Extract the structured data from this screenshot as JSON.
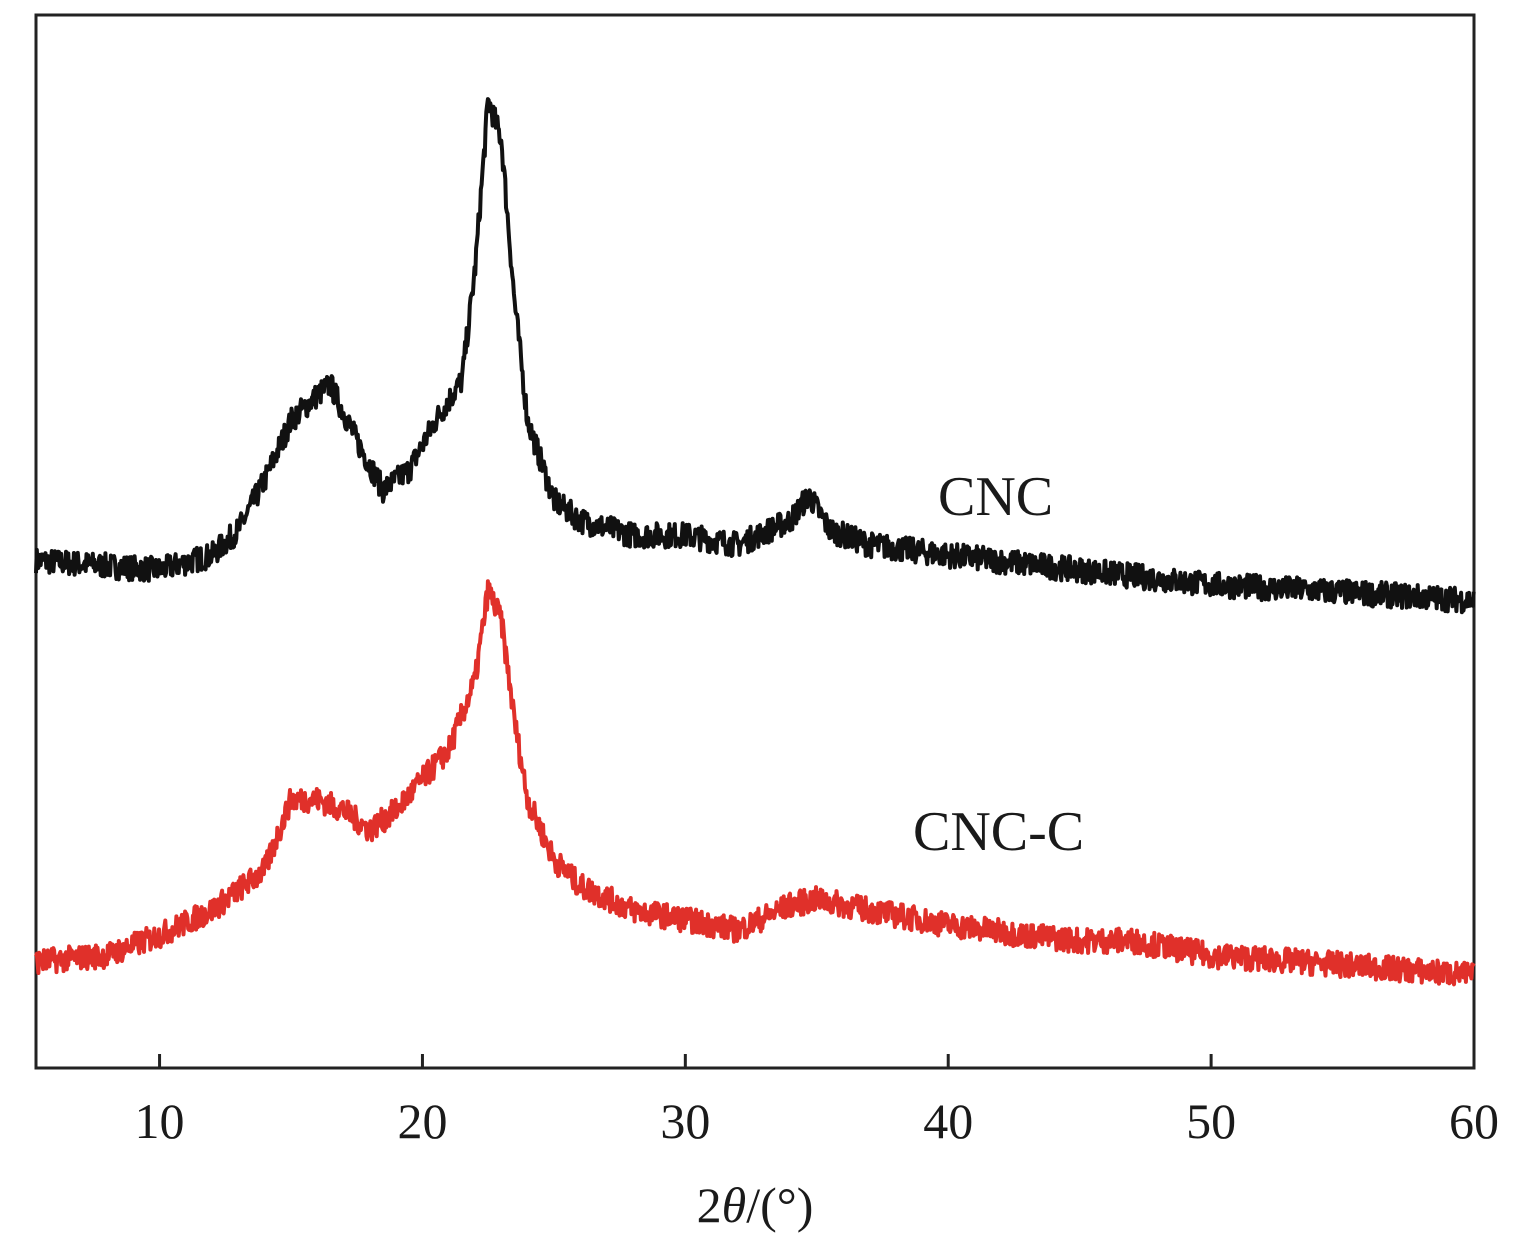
{
  "chart_data": {
    "type": "line",
    "title": "",
    "xlabel": "2θ/(°)",
    "xlabel_parts": {
      "prefix": "2",
      "symbol": "θ",
      "suffix": "/(°)"
    },
    "ylabel": "",
    "xlim": [
      5.3,
      60
    ],
    "ylim": [
      0,
      100
    ],
    "y_units": "arbitrary intensity (no y ticks shown)",
    "xticks": [
      10,
      20,
      30,
      40,
      50,
      60
    ],
    "xtick_labels": [
      "10",
      "20",
      "30",
      "40",
      "50",
      "60"
    ],
    "grid": false,
    "legend": "inline labels",
    "series": [
      {
        "name": "CNC",
        "color": "#111111",
        "x": [
          5.3,
          10,
          12,
          13,
          14,
          15,
          16,
          16.5,
          17.5,
          18.5,
          19.5,
          20.5,
          21.5,
          22,
          22.5,
          23,
          23.5,
          24,
          25,
          26,
          28,
          30,
          32,
          34,
          34.7,
          35.5,
          37,
          40,
          45,
          50,
          55,
          60
        ],
        "y": [
          48.2,
          47.3,
          48.7,
          51.1,
          55.8,
          61.5,
          63.9,
          64.9,
          59.6,
          54.9,
          56.8,
          61.5,
          65.3,
          75.8,
          91.9,
          88.2,
          72.9,
          61.5,
          53.9,
          52.0,
          50.6,
          50.6,
          49.7,
          52.0,
          54.4,
          51.1,
          49.7,
          48.7,
          47.3,
          45.9,
          45.2,
          44.4
        ]
      },
      {
        "name": "CNC-C",
        "color": "#e0302a",
        "x": [
          5.3,
          8,
          10,
          12,
          14,
          15,
          16,
          17,
          18,
          19,
          20,
          21,
          22,
          22.5,
          23,
          23.5,
          24,
          25,
          26,
          28,
          30,
          32,
          34,
          35,
          37,
          40,
          43,
          45,
          47,
          50,
          55,
          60
        ],
        "y": [
          10.1,
          10.7,
          12.6,
          15.0,
          18.8,
          25.5,
          25.5,
          24.5,
          22.6,
          24.5,
          27.4,
          30.2,
          36.8,
          45.4,
          42.5,
          33.0,
          25.5,
          19.8,
          17.3,
          15.0,
          14.1,
          13.1,
          15.5,
          16.0,
          15.0,
          13.6,
          12.6,
          12.1,
          12.1,
          10.7,
          9.8,
          8.8
        ]
      }
    ]
  }
}
